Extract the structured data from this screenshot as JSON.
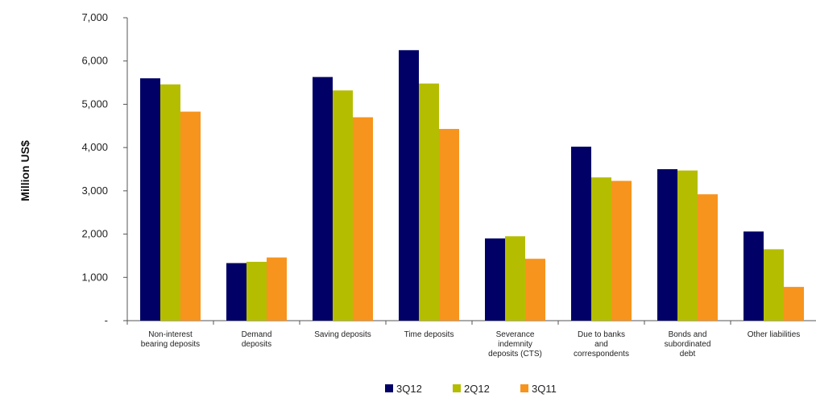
{
  "chart_data": {
    "type": "bar",
    "ylabel": "Million US$",
    "ylim": [
      0,
      7000
    ],
    "yticks": [
      {
        "value": 0,
        "label": "-"
      },
      {
        "value": 1000,
        "label": "1,000"
      },
      {
        "value": 2000,
        "label": "2,000"
      },
      {
        "value": 3000,
        "label": "3,000"
      },
      {
        "value": 4000,
        "label": "4,000"
      },
      {
        "value": 5000,
        "label": "5,000"
      },
      {
        "value": 6000,
        "label": "6,000"
      },
      {
        "value": 7000,
        "label": "7,000"
      }
    ],
    "categories": [
      [
        "Non-interest",
        "bearing deposits"
      ],
      [
        "Demand",
        "deposits"
      ],
      [
        "Saving deposits"
      ],
      [
        "Time deposits"
      ],
      [
        "Severance",
        "indemnity",
        "deposits (CTS)"
      ],
      [
        "Due to banks",
        "and",
        "correspondents"
      ],
      [
        "Bonds and",
        "subordinated",
        "debt"
      ],
      [
        "Other liabilities"
      ]
    ],
    "grid": false,
    "legend_position": "bottom",
    "series": [
      {
        "name": "3Q12",
        "color": "#000066",
        "values": [
          5600,
          1330,
          5630,
          6250,
          1900,
          4020,
          3500,
          2060
        ]
      },
      {
        "name": "2Q12",
        "color": "#B5BD00",
        "values": [
          5460,
          1360,
          5320,
          5480,
          1950,
          3310,
          3470,
          1650
        ]
      },
      {
        "name": "3Q11",
        "color": "#F7941D",
        "values": [
          4830,
          1460,
          4700,
          4430,
          1430,
          3230,
          2920,
          780
        ]
      }
    ]
  }
}
